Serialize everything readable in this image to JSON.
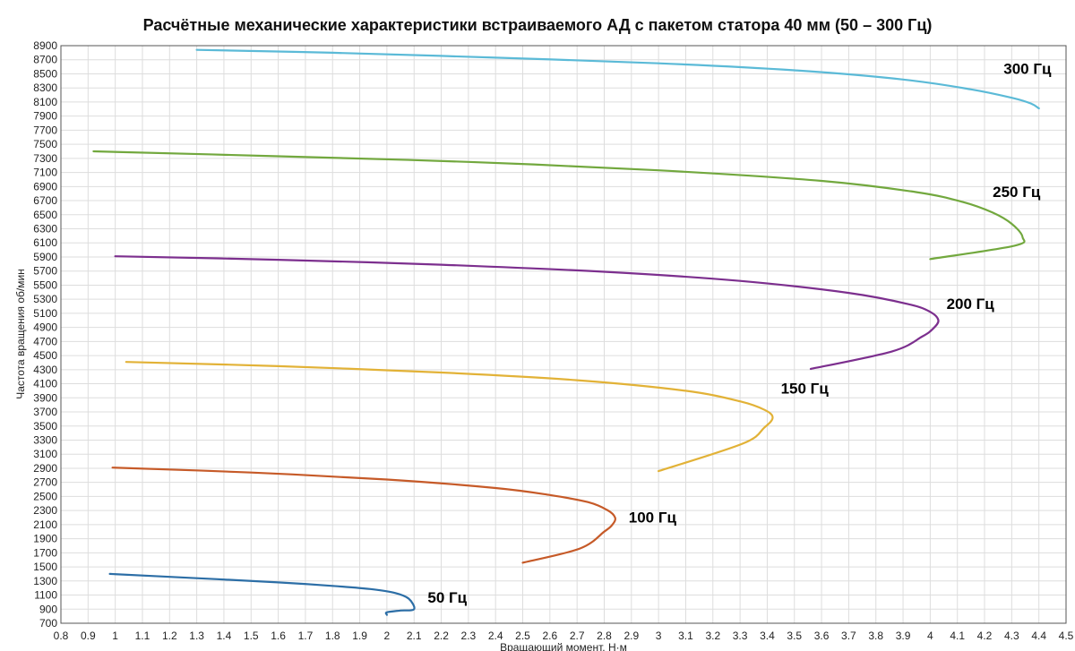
{
  "chart_data": {
    "type": "line",
    "title": "Расчётные механические характеристики встраиваемого АД с пакетом статора 40 мм (50 – 300 Гц)",
    "xlabel": "Вращающий момент, Н·м",
    "ylabel": "Частота вращения   об/мин",
    "xlim": [
      0.8,
      4.5
    ],
    "ylim": [
      700,
      8900
    ],
    "x_ticks": [
      "0.8",
      "0.9",
      "1",
      "1.1",
      "1.2",
      "1.3",
      "1.4",
      "1.5",
      "1.6",
      "1.7",
      "1.8",
      "1.9",
      "2",
      "2.1",
      "2.2",
      "2.3",
      "2.4",
      "2.5",
      "2.6",
      "2.7",
      "2.8",
      "2.9",
      "3",
      "3.1",
      "3.2",
      "3.3",
      "3.4",
      "3.5",
      "3.6",
      "3.7",
      "3.8",
      "3.9",
      "4",
      "4.1",
      "4.2",
      "4.3",
      "4.4",
      "4.5"
    ],
    "y_ticks": [
      "700",
      "900",
      "1100",
      "1300",
      "1500",
      "1700",
      "1900",
      "2100",
      "2300",
      "2500",
      "2700",
      "2900",
      "3100",
      "3300",
      "3500",
      "3700",
      "3900",
      "4100",
      "4300",
      "4500",
      "4700",
      "4900",
      "5100",
      "5300",
      "5500",
      "5700",
      "5900",
      "6100",
      "6300",
      "6500",
      "6700",
      "6900",
      "7100",
      "7300",
      "7500",
      "7700",
      "7900",
      "8100",
      "8300",
      "8500",
      "8700",
      "8900"
    ],
    "grid": true,
    "series": [
      {
        "name": "50 Гц",
        "color": "#2c6ea6",
        "label_at": [
          2.15,
          990
        ],
        "x": [
          0.98,
          1.3,
          1.6,
          1.8,
          1.95,
          2.03,
          2.08,
          2.1,
          2.05,
          2.0,
          2.0
        ],
        "y": [
          1400,
          1340,
          1280,
          1230,
          1180,
          1130,
          1050,
          900,
          880,
          855,
          820
        ]
      },
      {
        "name": "100 Гц",
        "color": "#c65a28",
        "label_at": [
          2.89,
          2130
        ],
        "x": [
          0.99,
          1.5,
          2.0,
          2.4,
          2.6,
          2.74,
          2.81,
          2.84,
          2.83,
          2.8,
          2.71,
          2.5
        ],
        "y": [
          2910,
          2840,
          2740,
          2620,
          2520,
          2420,
          2310,
          2200,
          2100,
          2000,
          1760,
          1560
        ]
      },
      {
        "name": "150 Гц",
        "color": "#e2b237",
        "label_at": [
          3.45,
          3960
        ],
        "x": [
          1.04,
          1.6,
          2.2,
          2.7,
          3.1,
          3.3,
          3.39,
          3.42,
          3.39,
          3.31,
          3.0
        ],
        "y": [
          4410,
          4350,
          4260,
          4150,
          4000,
          3850,
          3730,
          3620,
          3480,
          3250,
          2860
        ]
      },
      {
        "name": "200 Гц",
        "color": "#7c2f8e",
        "label_at": [
          4.06,
          5160
        ],
        "x": [
          1.0,
          1.6,
          2.2,
          2.8,
          3.3,
          3.7,
          3.92,
          4.0,
          4.03,
          4.01,
          3.97,
          3.86,
          3.56
        ],
        "y": [
          5910,
          5860,
          5790,
          5690,
          5560,
          5390,
          5230,
          5120,
          5000,
          4880,
          4770,
          4560,
          4310
        ]
      },
      {
        "name": "250 Гц",
        "color": "#72a83e",
        "label_at": [
          4.23,
          6750
        ],
        "x": [
          0.92,
          1.6,
          2.3,
          3.0,
          3.6,
          3.95,
          4.12,
          4.23,
          4.3,
          4.34,
          4.31,
          4.0
        ],
        "y": [
          7400,
          7330,
          7250,
          7130,
          6980,
          6820,
          6680,
          6530,
          6370,
          6180,
          6060,
          5870
        ]
      },
      {
        "name": "300 Гц",
        "color": "#5bbad7",
        "label_at": [
          4.27,
          8500
        ],
        "x": [
          1.3,
          1.8,
          2.4,
          3.0,
          3.5,
          3.9,
          4.15,
          4.3,
          4.37,
          4.4
        ],
        "y": [
          8840,
          8800,
          8730,
          8650,
          8550,
          8420,
          8280,
          8160,
          8080,
          8010
        ]
      }
    ]
  }
}
